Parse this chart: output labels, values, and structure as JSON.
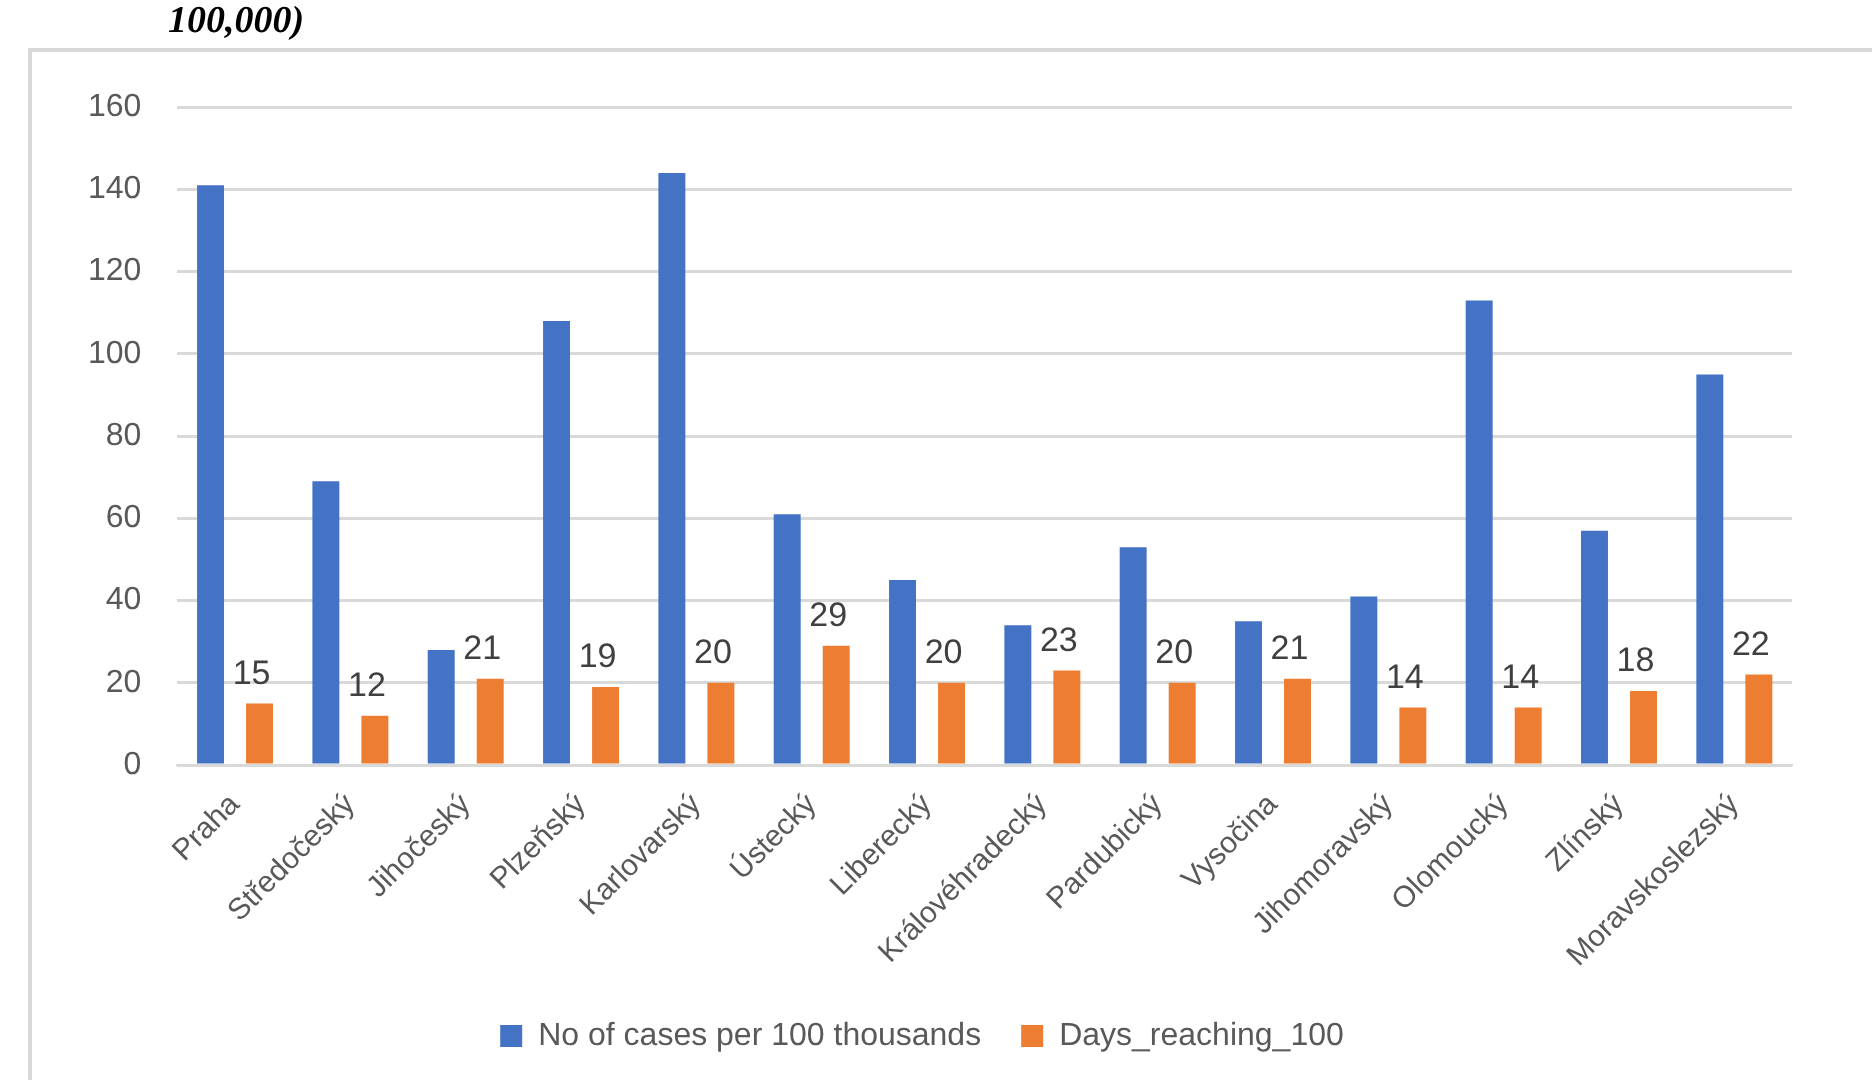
{
  "chart_data": {
    "type": "bar",
    "title": "100,000)",
    "categories": [
      "Praha",
      "Středočeský",
      "Jihočeský",
      "Plzeňský",
      "Karlovarský",
      "Ústecký",
      "Liberecký",
      "Královéhradecký",
      "Pardubický",
      "Vysočina",
      "Jihomoravský",
      "Olomoucký",
      "Zlínský",
      "Moravskoslezský"
    ],
    "series": [
      {
        "name": "No of cases per 100 thousands",
        "color": "#4472c4",
        "values": [
          141,
          69,
          28,
          108,
          144,
          61,
          45,
          34,
          53,
          35,
          41,
          113,
          57,
          95
        ]
      },
      {
        "name": "Days_reaching_100",
        "color": "#ed7d31",
        "values": [
          15,
          12,
          21,
          19,
          20,
          29,
          20,
          23,
          20,
          21,
          14,
          14,
          18,
          22
        ],
        "value_labels": [
          "15",
          "12",
          "21",
          "19",
          "20",
          "29",
          "20",
          "23",
          "20",
          "21",
          "14",
          "14",
          "18",
          "22"
        ]
      }
    ],
    "ylim": [
      0,
      160
    ],
    "yticks": [
      0,
      20,
      40,
      60,
      80,
      100,
      120,
      140,
      160
    ],
    "grid": "y",
    "legend": "bottom"
  }
}
